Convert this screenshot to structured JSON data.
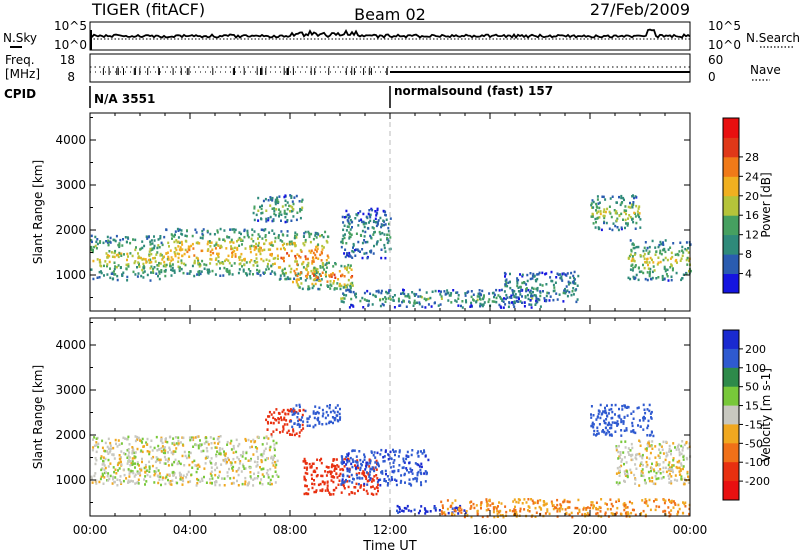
{
  "header": {
    "radar": "TIGER (fitACF)",
    "beam": "Beam 02",
    "date": "27/Feb/2009"
  },
  "noise_panel": {
    "left_label": "N.Sky",
    "left_ticks": [
      "10^5",
      "10^0"
    ],
    "right_label": "N.Search",
    "right_ticks": [
      "10^5",
      "10^0"
    ]
  },
  "freq_panel": {
    "left_label_1": "Freq.",
    "left_label_2": "[MHz]",
    "left_ticks": [
      "18",
      "8"
    ],
    "right_label": "Nave",
    "right_ticks": [
      "60",
      "0"
    ]
  },
  "cpid": {
    "label": "CPID",
    "segments": [
      {
        "text": "N/A 3551",
        "start_hour": 0
      },
      {
        "text": "normalsound (fast) 157",
        "start_hour": 12
      }
    ]
  },
  "x_axis": {
    "title": "Time UT",
    "ticks": [
      "00:00",
      "04:00",
      "08:00",
      "12:00",
      "16:00",
      "20:00",
      "00:00"
    ],
    "range_hours": [
      0,
      24
    ]
  },
  "chart_data": [
    {
      "type": "heatmap",
      "name": "power",
      "ylabel": "Slant Range [km]",
      "yticks": [
        1000,
        2000,
        3000,
        4000
      ],
      "ylim": [
        200,
        4600
      ],
      "xlim": [
        0,
        24
      ],
      "colorbar": {
        "label": "Power [dB]",
        "ticks": [
          "4",
          "8",
          "12",
          "16",
          "20",
          "24",
          "28"
        ],
        "colors": [
          "#1515e0",
          "#2a5cb0",
          "#2f8a7a",
          "#46a060",
          "#b5c43a",
          "#f0b020",
          "#f07a18",
          "#e03818",
          "#e81010"
        ]
      },
      "echo_bands": [
        {
          "from_h": 0.0,
          "to_h": 3.0,
          "range_km": [
            900,
            1900
          ],
          "peak_db": 22
        },
        {
          "from_h": 3.0,
          "to_h": 7.5,
          "range_km": [
            1000,
            2050
          ],
          "peak_db": 26
        },
        {
          "from_h": 7.5,
          "to_h": 9.5,
          "range_km": [
            900,
            2000
          ],
          "peak_db": 28
        },
        {
          "from_h": 8.0,
          "to_h": 10.5,
          "range_km": [
            700,
            1300
          ],
          "peak_db": 30
        },
        {
          "from_h": 6.5,
          "to_h": 8.5,
          "range_km": [
            2200,
            2800
          ],
          "peak_db": 18
        },
        {
          "from_h": 10.0,
          "to_h": 12.0,
          "range_km": [
            1400,
            2500
          ],
          "peak_db": 14
        },
        {
          "from_h": 10.0,
          "to_h": 18.0,
          "range_km": [
            300,
            700
          ],
          "peak_db": 16
        },
        {
          "from_h": 16.5,
          "to_h": 19.5,
          "range_km": [
            400,
            1100
          ],
          "peak_db": 14
        },
        {
          "from_h": 20.0,
          "to_h": 22.0,
          "range_km": [
            2000,
            2800
          ],
          "peak_db": 20
        },
        {
          "from_h": 21.5,
          "to_h": 24.0,
          "range_km": [
            900,
            1800
          ],
          "peak_db": 22
        }
      ]
    },
    {
      "type": "heatmap",
      "name": "velocity",
      "ylabel": "Slant Range [km]",
      "yticks": [
        1000,
        2000,
        3000,
        4000
      ],
      "ylim": [
        200,
        4600
      ],
      "xlim": [
        0,
        24
      ],
      "colorbar": {
        "label": "Velocity [m s-1]",
        "ticks": [
          "200",
          "100",
          "50",
          "15",
          "-15",
          "-50",
          "-100",
          "-200"
        ],
        "colors": [
          "#1a2ad0",
          "#2f5ad0",
          "#2e8a4a",
          "#78c83a",
          "#c8c8c0",
          "#f0a820",
          "#f07018",
          "#e83010",
          "#e81010"
        ]
      },
      "echo_bands": [
        {
          "from_h": 0.0,
          "to_h": 7.5,
          "range_km": [
            900,
            2000
          ],
          "velocity": 0
        },
        {
          "from_h": 7.0,
          "to_h": 8.5,
          "range_km": [
            2000,
            2600
          ],
          "velocity": -150
        },
        {
          "from_h": 8.0,
          "to_h": 10.0,
          "range_km": [
            2200,
            2700
          ],
          "velocity": 150
        },
        {
          "from_h": 8.5,
          "to_h": 11.5,
          "range_km": [
            700,
            1500
          ],
          "velocity": -150
        },
        {
          "from_h": 10.0,
          "to_h": 13.5,
          "range_km": [
            900,
            1700
          ],
          "velocity": 180
        },
        {
          "from_h": 12.0,
          "to_h": 15.0,
          "range_km": [
            280,
            450
          ],
          "velocity": 220
        },
        {
          "from_h": 14.0,
          "to_h": 24.0,
          "range_km": [
            200,
            600
          ],
          "velocity": -50
        },
        {
          "from_h": 20.0,
          "to_h": 22.5,
          "range_km": [
            2000,
            2700
          ],
          "velocity": 150
        },
        {
          "from_h": 21.0,
          "to_h": 24.0,
          "range_km": [
            900,
            1900
          ],
          "velocity": 0
        }
      ]
    }
  ]
}
